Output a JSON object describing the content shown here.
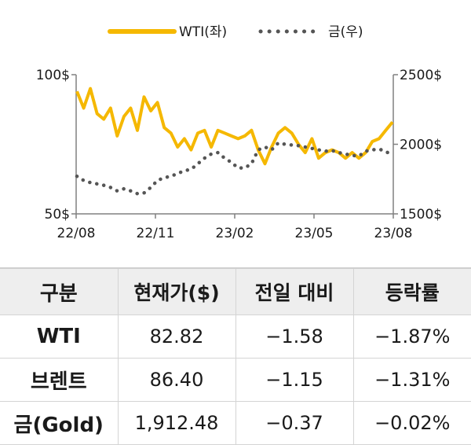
{
  "chart_data": {
    "type": "line",
    "legend": {
      "placement": "top-center"
    },
    "x_ticks": [
      "22/08",
      "22/11",
      "23/02",
      "23/05",
      "23/08"
    ],
    "y_left": {
      "ticks": [
        "100$",
        "50$"
      ],
      "ylim": [
        50,
        100
      ]
    },
    "y_right": {
      "ticks": [
        "2500$",
        "2000$",
        "1500$"
      ],
      "ylim": [
        1500,
        2500
      ]
    },
    "series": [
      {
        "name": "WTI(좌)",
        "axis": "left",
        "style": "solid",
        "color": "#F5B800",
        "x": [
          "22/08",
          "22/08",
          "22/08",
          "22/09",
          "22/09",
          "22/09",
          "22/09",
          "22/10",
          "22/10",
          "22/10",
          "22/10",
          "22/11",
          "22/11",
          "22/11",
          "22/11",
          "22/12",
          "22/12",
          "22/12",
          "22/12",
          "23/01",
          "23/01",
          "23/01",
          "23/01",
          "23/02",
          "23/02",
          "23/02",
          "23/02",
          "23/03",
          "23/03",
          "23/03",
          "23/03",
          "23/04",
          "23/04",
          "23/04",
          "23/04",
          "23/05",
          "23/05",
          "23/05",
          "23/05",
          "23/06",
          "23/06",
          "23/06",
          "23/06",
          "23/07",
          "23/07",
          "23/07",
          "23/07",
          "23/08"
        ],
        "values": [
          94,
          88,
          95,
          86,
          84,
          88,
          78,
          85,
          88,
          80,
          92,
          87,
          90,
          81,
          79,
          74,
          77,
          73,
          79,
          80,
          74,
          80,
          79,
          78,
          77,
          78,
          80,
          73,
          68,
          74,
          79,
          81,
          79,
          75,
          72,
          77,
          70,
          72,
          73,
          72,
          70,
          72,
          70,
          72,
          76,
          77,
          80,
          83
        ]
      },
      {
        "name": "금(우)",
        "axis": "right",
        "style": "dotted",
        "color": "#555555",
        "x": [
          "22/08",
          "22/08",
          "22/08",
          "22/09",
          "22/09",
          "22/09",
          "22/09",
          "22/10",
          "22/10",
          "22/10",
          "22/10",
          "22/11",
          "22/11",
          "22/11",
          "22/11",
          "22/12",
          "22/12",
          "22/12",
          "22/12",
          "23/01",
          "23/01",
          "23/01",
          "23/01",
          "23/02",
          "23/02",
          "23/02",
          "23/02",
          "23/03",
          "23/03",
          "23/03",
          "23/03",
          "23/04",
          "23/04",
          "23/04",
          "23/04",
          "23/05",
          "23/05",
          "23/05",
          "23/05",
          "23/06",
          "23/06",
          "23/06",
          "23/06",
          "23/07",
          "23/07",
          "23/07",
          "23/07",
          "23/08"
        ],
        "values": [
          1770,
          1740,
          1725,
          1715,
          1705,
          1690,
          1665,
          1680,
          1665,
          1645,
          1650,
          1690,
          1740,
          1760,
          1770,
          1790,
          1810,
          1820,
          1860,
          1900,
          1930,
          1940,
          1900,
          1870,
          1830,
          1830,
          1860,
          1960,
          1980,
          1960,
          2010,
          2000,
          1995,
          1990,
          1980,
          1970,
          1960,
          1950,
          1955,
          1940,
          1930,
          1920,
          1915,
          1950,
          1960,
          1965,
          1950,
          1915
        ]
      }
    ]
  },
  "table": {
    "headers": [
      "구분",
      "현재가($)",
      "전일 대비",
      "등락률"
    ],
    "rows": [
      [
        "WTI",
        "82.82",
        "−1.58",
        "−1.87%"
      ],
      [
        "브렌트",
        "86.40",
        "−1.15",
        "−1.31%"
      ],
      [
        "금(Gold)",
        "1,912.48",
        "−0.37",
        "−0.02%"
      ]
    ]
  }
}
